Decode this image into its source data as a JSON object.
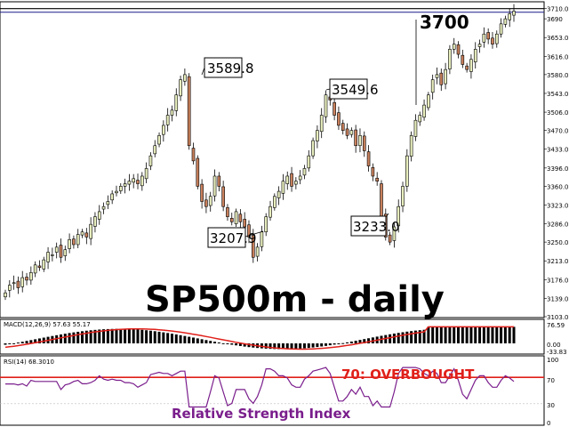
{
  "chart_data": [
    {
      "type": "candlestick",
      "title": "SP500m - daily",
      "ylim": [
        3103,
        3720
      ],
      "y_ticks": [
        "3710.0",
        "3690",
        "3653.0",
        "3616.0",
        "3580.0",
        "3543.0",
        "3506.0",
        "3470.0",
        "3433.0",
        "3396.0",
        "3360.0",
        "3323.0",
        "3286.0",
        "3250.0",
        "3213.0",
        "3176.0",
        "3139.0",
        "3103.0"
      ],
      "annotations": [
        {
          "label": "3589.8",
          "value": 3589.8
        },
        {
          "label": "3549.6",
          "value": 3549.6
        },
        {
          "label": "3207.9",
          "value": 3207.9
        },
        {
          "label": "3233.0",
          "value": 3233.0
        },
        {
          "label": "3700",
          "value": 3700
        }
      ],
      "level_line": 3710.0,
      "bull_color": "#e8edbd",
      "bear_color": "#c8805c",
      "closes": [
        3150,
        3165,
        3170,
        3160,
        3180,
        3175,
        3190,
        3205,
        3200,
        3215,
        3230,
        3225,
        3240,
        3220,
        3235,
        3255,
        3245,
        3265,
        3270,
        3260,
        3285,
        3300,
        3310,
        3320,
        3330,
        3345,
        3350,
        3360,
        3365,
        3370,
        3375,
        3365,
        3380,
        3395,
        3420,
        3440,
        3460,
        3480,
        3500,
        3510,
        3540,
        3570,
        3580,
        3440,
        3410,
        3360,
        3330,
        3320,
        3340,
        3380,
        3360,
        3320,
        3300,
        3290,
        3310,
        3290,
        3280,
        3260,
        3220,
        3240,
        3270,
        3300,
        3320,
        3340,
        3350,
        3370,
        3380,
        3360,
        3370,
        3380,
        3395,
        3420,
        3450,
        3470,
        3500,
        3540,
        3530,
        3500,
        3480,
        3470,
        3460,
        3470,
        3440,
        3460,
        3430,
        3400,
        3380,
        3370,
        3300,
        3260,
        3250,
        3280,
        3320,
        3360,
        3420,
        3460,
        3490,
        3500,
        3520,
        3540,
        3570,
        3580,
        3560,
        3590,
        3630,
        3640,
        3620,
        3600,
        3590,
        3610,
        3630,
        3640,
        3660,
        3650,
        3640,
        3660,
        3680,
        3690,
        3700,
        3705
      ]
    },
    {
      "type": "macd",
      "label": "MACD(12,26,9) 57.63 55.17",
      "y_ticks": [
        "76.59",
        "0.00",
        "-33.83"
      ],
      "ylim": [
        -33.83,
        76.59
      ]
    },
    {
      "type": "rsi",
      "label": "RSI(14) 68.3010",
      "y_ticks": [
        "100",
        "70",
        "30",
        "0"
      ],
      "ylim": [
        0,
        100
      ],
      "overbought_level": 70,
      "overbought_text": "70: OVERBOUGHT",
      "caption": "Relative Strength Index"
    }
  ]
}
